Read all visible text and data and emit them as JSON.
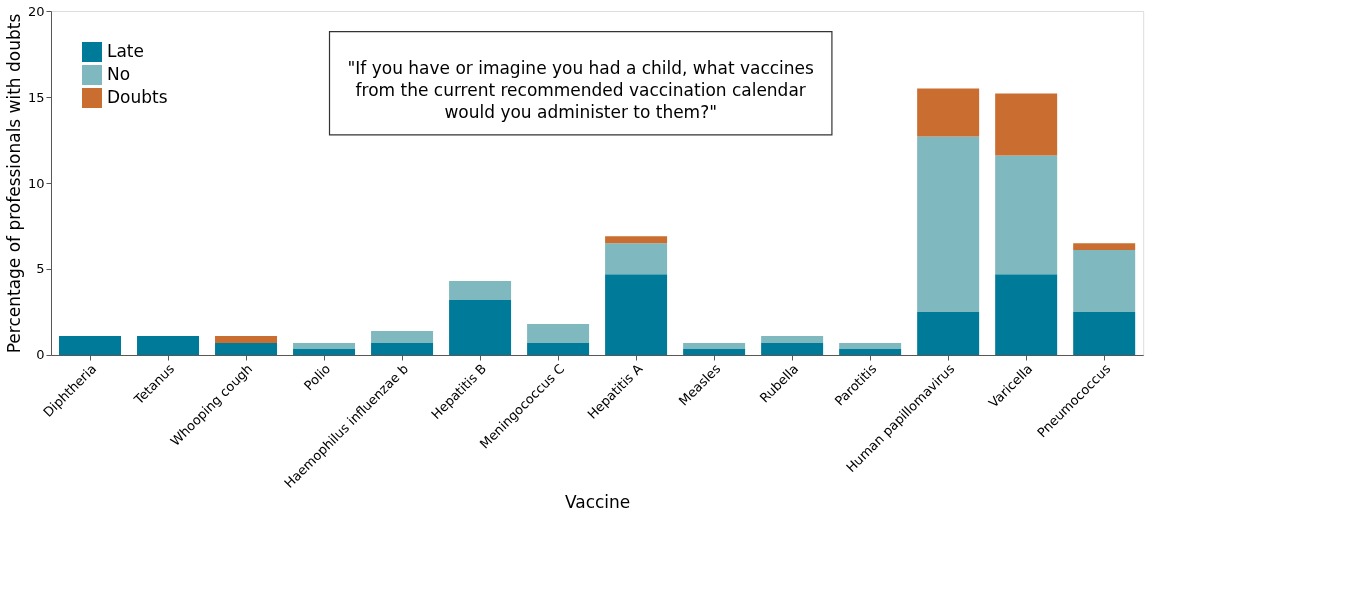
{
  "chart_data": {
    "type": "bar",
    "stacked": true,
    "xlabel": "Vaccine",
    "ylabel": "Percentage of professionals with doubts",
    "categories": [
      "Diphtheria",
      "Tetanus",
      "Whooping cough",
      "Polio",
      "Haemophilus influenzae b",
      "Hepatitis B",
      "Meningococcus C",
      "Hepatitis A",
      "Measles",
      "Rubella",
      "Parotitis",
      "Human papillomavirus",
      "Varicella",
      "Pneumococcus"
    ],
    "series": [
      {
        "name": "Late",
        "color": "#007a99",
        "values": [
          1.1,
          1.1,
          0.7,
          0.35,
          0.7,
          3.2,
          0.7,
          4.7,
          0.35,
          0.7,
          0.35,
          2.5,
          4.7,
          2.5
        ]
      },
      {
        "name": "No",
        "color": "#7fb8be",
        "values": [
          0,
          0,
          0,
          0.35,
          0.7,
          1.1,
          1.1,
          1.8,
          0.35,
          0.4,
          0.35,
          10.2,
          6.9,
          3.6
        ]
      },
      {
        "name": "Doubts",
        "color": "#c96d31",
        "values": [
          0,
          0,
          0.4,
          0,
          0,
          0,
          0,
          0.4,
          0,
          0,
          0,
          2.8,
          3.6,
          0.4
        ]
      }
    ],
    "ylim": [
      0,
      20
    ],
    "yticks": [
      0,
      5,
      10,
      15,
      20
    ],
    "grid": false,
    "legend": "top left",
    "annotations": [
      "\"If you have or imagine you had a child, what vaccines\nfrom the current recommended vaccination calendar\nwould you administer to them?\""
    ]
  }
}
